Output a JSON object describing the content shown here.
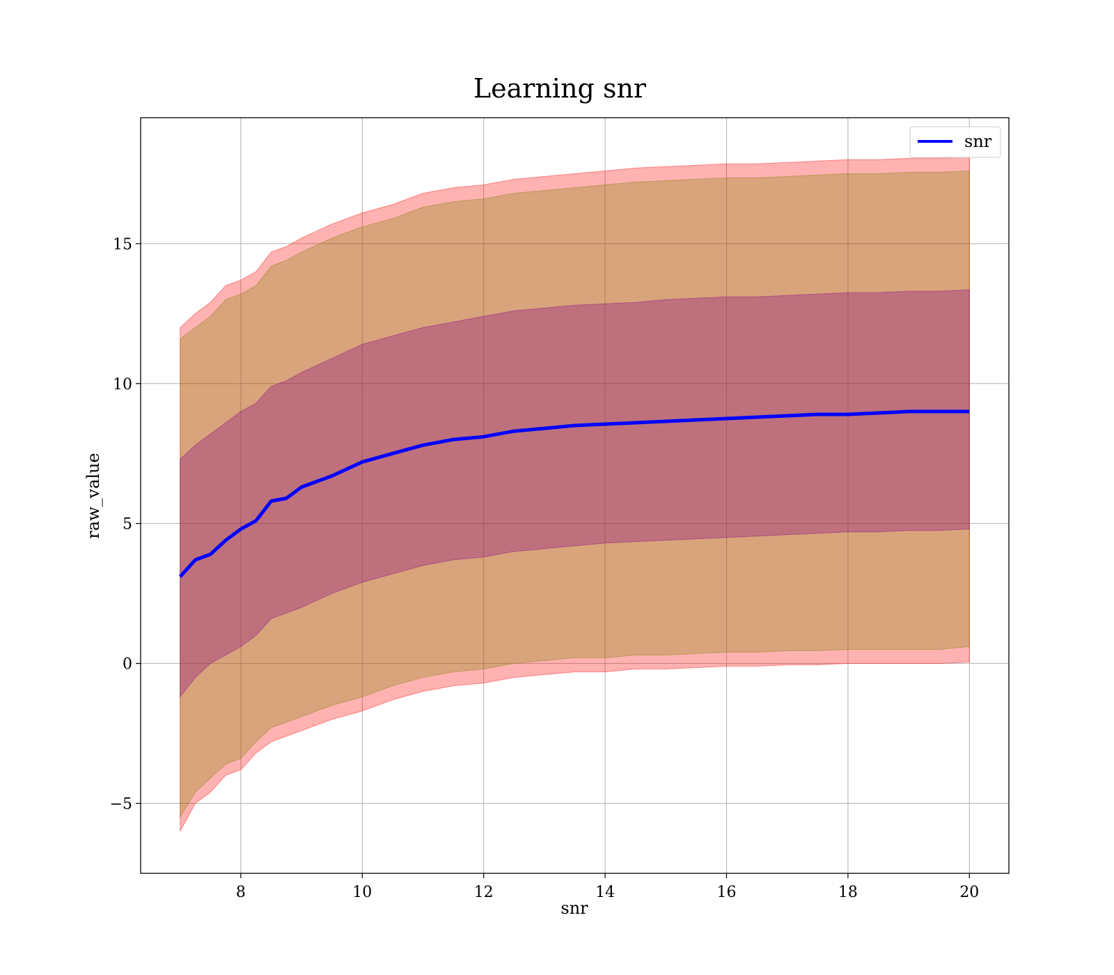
{
  "chart_data": {
    "type": "area",
    "title": "Learning snr",
    "xlabel": "snr",
    "ylabel": "raw_value",
    "xlim": [
      6.35,
      20.65
    ],
    "ylim": [
      -7.5,
      19.5
    ],
    "xticks": [
      8,
      10,
      12,
      14,
      16,
      18,
      20
    ],
    "xtick_labels": [
      "8",
      "10",
      "12",
      "14",
      "16",
      "18",
      "20"
    ],
    "yticks": [
      -5,
      0,
      5,
      10,
      15
    ],
    "ytick_labels": [
      "−5",
      "0",
      "5",
      "10",
      "15"
    ],
    "grid": true,
    "legend": {
      "position": "top-right",
      "entries": [
        "snr"
      ]
    },
    "x": [
      7.0,
      7.25,
      7.5,
      7.75,
      8.0,
      8.25,
      8.5,
      8.75,
      9.0,
      9.5,
      10.0,
      10.5,
      11.0,
      11.5,
      12.0,
      12.5,
      13.0,
      13.5,
      14.0,
      14.5,
      15.0,
      15.5,
      16.0,
      16.5,
      17.0,
      17.5,
      18.0,
      18.5,
      19.0,
      19.5,
      20.0
    ],
    "series": [
      {
        "name": "snr",
        "kind": "line",
        "color": "#0000ff",
        "values": [
          3.1,
          3.7,
          3.9,
          4.4,
          4.8,
          5.1,
          5.8,
          5.9,
          6.3,
          6.7,
          7.2,
          7.5,
          7.8,
          8.0,
          8.1,
          8.3,
          8.4,
          8.5,
          8.55,
          8.6,
          8.65,
          8.7,
          8.75,
          8.8,
          8.85,
          8.9,
          8.9,
          8.95,
          9.0,
          9.0,
          9.0
        ]
      },
      {
        "kind": "band",
        "color": "#ff0000",
        "lower": [
          -6.0,
          -5.0,
          -4.6,
          -4.0,
          -3.8,
          -3.2,
          -2.8,
          -2.6,
          -2.4,
          -2.0,
          -1.7,
          -1.3,
          -1.0,
          -0.8,
          -0.7,
          -0.5,
          -0.4,
          -0.3,
          -0.3,
          -0.2,
          -0.2,
          -0.15,
          -0.1,
          -0.1,
          -0.05,
          -0.05,
          0.0,
          0.0,
          0.0,
          0.0,
          0.05
        ],
        "upper": [
          12.0,
          12.5,
          12.9,
          13.5,
          13.7,
          14.0,
          14.7,
          14.9,
          15.2,
          15.7,
          16.1,
          16.4,
          16.8,
          17.0,
          17.1,
          17.3,
          17.4,
          17.5,
          17.6,
          17.7,
          17.75,
          17.8,
          17.85,
          17.85,
          17.9,
          17.95,
          18.0,
          18.0,
          18.05,
          18.05,
          18.1
        ]
      },
      {
        "kind": "band",
        "color": "#808000",
        "lower": [
          -5.5,
          -4.6,
          -4.1,
          -3.6,
          -3.4,
          -2.8,
          -2.3,
          -2.1,
          -1.9,
          -1.5,
          -1.2,
          -0.8,
          -0.5,
          -0.3,
          -0.2,
          0.0,
          0.1,
          0.2,
          0.2,
          0.3,
          0.3,
          0.35,
          0.4,
          0.4,
          0.45,
          0.45,
          0.5,
          0.5,
          0.5,
          0.5,
          0.6
        ],
        "upper": [
          11.6,
          12.0,
          12.4,
          13.0,
          13.2,
          13.5,
          14.2,
          14.4,
          14.7,
          15.2,
          15.6,
          15.9,
          16.3,
          16.5,
          16.6,
          16.8,
          16.9,
          17.0,
          17.1,
          17.2,
          17.25,
          17.3,
          17.35,
          17.35,
          17.4,
          17.45,
          17.5,
          17.5,
          17.55,
          17.55,
          17.6
        ]
      },
      {
        "kind": "band",
        "color": "#800080",
        "lower": [
          -1.2,
          -0.5,
          0.0,
          0.3,
          0.6,
          1.0,
          1.6,
          1.8,
          2.0,
          2.5,
          2.9,
          3.2,
          3.5,
          3.7,
          3.8,
          4.0,
          4.1,
          4.2,
          4.3,
          4.35,
          4.4,
          4.45,
          4.5,
          4.55,
          4.6,
          4.65,
          4.7,
          4.7,
          4.75,
          4.75,
          4.8
        ],
        "upper": [
          7.3,
          7.8,
          8.2,
          8.6,
          9.0,
          9.3,
          9.9,
          10.1,
          10.4,
          10.9,
          11.4,
          11.7,
          12.0,
          12.2,
          12.4,
          12.6,
          12.7,
          12.8,
          12.85,
          12.9,
          13.0,
          13.05,
          13.1,
          13.1,
          13.15,
          13.2,
          13.25,
          13.25,
          13.3,
          13.3,
          13.35
        ]
      }
    ]
  }
}
